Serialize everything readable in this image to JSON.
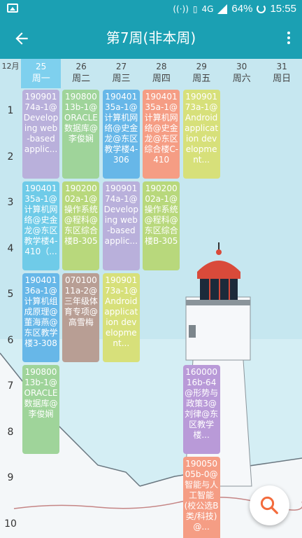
{
  "status": {
    "network": "4G",
    "battery": "64%",
    "time": "15:55"
  },
  "appbar": {
    "title": "第7周(非本周)"
  },
  "header": {
    "month": "12月",
    "days": [
      {
        "num": "25",
        "name": "周一",
        "today": true
      },
      {
        "num": "26",
        "name": "周二"
      },
      {
        "num": "27",
        "name": "周三"
      },
      {
        "num": "28",
        "name": "周四"
      },
      {
        "num": "29",
        "name": "周五"
      },
      {
        "num": "30",
        "name": "周六"
      },
      {
        "num": "31",
        "name": "周日"
      }
    ]
  },
  "periods": [
    "1",
    "2",
    "3",
    "4",
    "5",
    "6",
    "7",
    "8",
    "9",
    "10"
  ],
  "courses": [
    {
      "day": 0,
      "start": 1,
      "span": 2,
      "color": "#b9b0db",
      "text": "19090174a-1@Developing web-based applic..."
    },
    {
      "day": 1,
      "start": 1,
      "span": 2,
      "color": "#9fd49a",
      "text": "19080013b-1@ORACLE数据库@李俊娴"
    },
    {
      "day": 2,
      "start": 1,
      "span": 2,
      "color": "#67b7e8",
      "text": "19040135a-1@计算机网络@史金龙@东区教学楼4-306"
    },
    {
      "day": 3,
      "start": 1,
      "span": 2,
      "color": "#f59d84",
      "text": "19040135a-1@计算机网络@史金龙@东区综合楼C-410"
    },
    {
      "day": 4,
      "start": 1,
      "span": 2,
      "color": "#d7e07a",
      "text": "19090173a-1@Android application development..."
    },
    {
      "day": 0,
      "start": 3,
      "span": 2,
      "color": "#6fcbe8",
      "text": "19040135a-1@计算机网络@史金龙@东区教学楼4-410（..."
    },
    {
      "day": 1,
      "start": 3,
      "span": 2,
      "color": "#b8d87c",
      "text": "19020002a-1@操作系统@程科@东区综合楼B-305"
    },
    {
      "day": 2,
      "start": 3,
      "span": 2,
      "color": "#b9b0db",
      "text": "19090174a-1@Developing web-based applic..."
    },
    {
      "day": 3,
      "start": 3,
      "span": 2,
      "color": "#b8d87c",
      "text": "19020002a-1@操作系统@程科@东区综合楼B-305"
    },
    {
      "day": 0,
      "start": 5,
      "span": 2,
      "color": "#67b7e8",
      "text": "19040136a-1@计算机组成原理@董海燕@东区教学楼3-308"
    },
    {
      "day": 1,
      "start": 5,
      "span": 2,
      "color": "#b89e94",
      "text": "07010011a-2@三年级体育专项@高雪梅"
    },
    {
      "day": 2,
      "start": 5,
      "span": 2,
      "color": "#d7e07a",
      "text": "19090173a-1@Android application development..."
    },
    {
      "day": 0,
      "start": 7,
      "span": 2,
      "color": "#9fd49a",
      "text": "19080013b-1@ORACLE数据库@李俊娴"
    },
    {
      "day": 4,
      "start": 7,
      "span": 2,
      "color": "#b99ad8",
      "text": "16000016b-64@形势与政策3@刘律@东区教学楼..."
    },
    {
      "day": 4,
      "start": 9,
      "span": 2,
      "color": "#f59d84",
      "text": "19005005b-0@智能与人工智能(校公选B类/科技)@..."
    }
  ],
  "icons": {
    "back": "arrow-back-icon",
    "menu": "more-vert-icon",
    "search": "search-icon"
  },
  "colors": {
    "primary": "#1ba0b3",
    "today": "#7ed0ee",
    "fab_icon": "#f36b3c"
  }
}
